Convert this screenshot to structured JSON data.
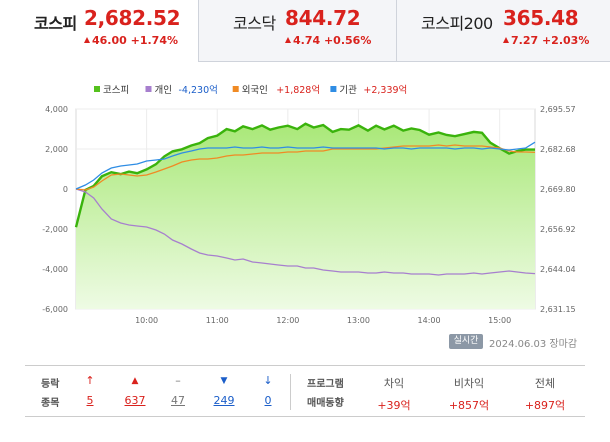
{
  "tabs": [
    {
      "name": "코스피",
      "value": "2,682.52",
      "change": "46.00 +1.74%",
      "active": true
    },
    {
      "name": "코스닥",
      "value": "844.72",
      "change": "4.74 +0.56%",
      "active": false
    },
    {
      "name": "코스피200",
      "value": "365.48",
      "change": "7.27 +2.03%",
      "active": false
    }
  ],
  "legend": [
    {
      "label": "코스피",
      "color": "#55c11d"
    },
    {
      "label": "개인",
      "value": "-4,230억",
      "color": "#a77fce",
      "value_color": "#1b5ec9"
    },
    {
      "label": "외국인",
      "value": "+1,828억",
      "color": "#f08a24",
      "value_color": "#d9221d"
    },
    {
      "label": "기관",
      "value": "+2,339억",
      "color": "#2f8de4",
      "value_color": "#d9221d"
    }
  ],
  "chart_data": {
    "type": "line",
    "x_ticks": [
      "10:00",
      "11:00",
      "12:00",
      "13:00",
      "14:00",
      "15:00"
    ],
    "x_range": [
      "09:00",
      "15:30"
    ],
    "left_axis": {
      "ticks": [
        "4,000",
        "2,000",
        "0",
        "-2,000",
        "-4,000",
        "-6,000"
      ],
      "range": [
        -6000,
        4000
      ],
      "unit": "억"
    },
    "right_axis": {
      "ticks": [
        "2,695.57",
        "2,682.68",
        "2,669.80",
        "2,656.92",
        "2,644.04",
        "2,631.15"
      ],
      "range": [
        2631.15,
        2695.57
      ]
    },
    "baseline_dotted": 2636.52,
    "series": [
      {
        "name": "코스피",
        "axis": "right",
        "type": "area",
        "x": [
          "09:00",
          "09:08",
          "09:15",
          "09:22",
          "09:30",
          "09:38",
          "09:45",
          "09:52",
          "10:00",
          "10:08",
          "10:15",
          "10:22",
          "10:30",
          "10:38",
          "10:45",
          "10:52",
          "11:00",
          "11:08",
          "11:15",
          "11:22",
          "11:30",
          "11:38",
          "11:45",
          "11:52",
          "12:00",
          "12:08",
          "12:15",
          "12:22",
          "12:30",
          "12:38",
          "12:45",
          "12:52",
          "13:00",
          "13:08",
          "13:15",
          "13:22",
          "13:30",
          "13:38",
          "13:45",
          "13:52",
          "14:00",
          "14:08",
          "14:15",
          "14:22",
          "14:30",
          "14:38",
          "14:45",
          "14:52",
          "15:00",
          "15:08",
          "15:15",
          "15:22",
          "15:30"
        ],
        "values": [
          2657.5,
          2669.5,
          2670.8,
          2673.9,
          2675.2,
          2674.6,
          2675.4,
          2674.9,
          2676.1,
          2677.8,
          2680.3,
          2681.9,
          2682.6,
          2683.8,
          2684.6,
          2686.2,
          2687.0,
          2689.1,
          2688.4,
          2690.0,
          2689.1,
          2690.3,
          2688.9,
          2689.6,
          2690.2,
          2689.1,
          2690.8,
          2689.6,
          2690.4,
          2688.2,
          2689.1,
          2688.9,
          2690.3,
          2688.6,
          2690.2,
          2689.0,
          2690.2,
          2688.6,
          2689.3,
          2688.8,
          2687.3,
          2688.0,
          2687.2,
          2686.8,
          2687.5,
          2688.2,
          2687.9,
          2684.7,
          2682.9,
          2681.2,
          2682.0,
          2682.5,
          2682.5
        ]
      },
      {
        "name": "개인",
        "axis": "left",
        "x": [
          "09:00",
          "09:08",
          "09:15",
          "09:22",
          "09:30",
          "09:38",
          "09:45",
          "09:52",
          "10:00",
          "10:08",
          "10:15",
          "10:22",
          "10:30",
          "10:38",
          "10:45",
          "10:52",
          "11:00",
          "11:08",
          "11:15",
          "11:22",
          "11:30",
          "11:38",
          "11:45",
          "11:52",
          "12:00",
          "12:08",
          "12:15",
          "12:22",
          "12:30",
          "12:38",
          "12:45",
          "12:52",
          "13:00",
          "13:08",
          "13:15",
          "13:22",
          "13:30",
          "13:38",
          "13:45",
          "13:52",
          "14:00",
          "14:08",
          "14:15",
          "14:22",
          "14:30",
          "14:38",
          "14:45",
          "14:52",
          "15:00",
          "15:08",
          "15:15",
          "15:22",
          "15:30"
        ],
        "values": [
          0,
          -150,
          -450,
          -1000,
          -1500,
          -1700,
          -1800,
          -1850,
          -1900,
          -2050,
          -2250,
          -2550,
          -2750,
          -3000,
          -3200,
          -3300,
          -3350,
          -3450,
          -3550,
          -3500,
          -3650,
          -3700,
          -3750,
          -3800,
          -3850,
          -3850,
          -3950,
          -3950,
          -4050,
          -4100,
          -4150,
          -4150,
          -4150,
          -4200,
          -4200,
          -4150,
          -4200,
          -4200,
          -4250,
          -4250,
          -4250,
          -4300,
          -4250,
          -4250,
          -4250,
          -4200,
          -4250,
          -4200,
          -4150,
          -4100,
          -4150,
          -4200,
          -4230
        ]
      },
      {
        "name": "외국인",
        "axis": "left",
        "x": [
          "09:00",
          "09:08",
          "09:15",
          "09:22",
          "09:30",
          "09:38",
          "09:45",
          "09:52",
          "10:00",
          "10:08",
          "10:15",
          "10:22",
          "10:30",
          "10:38",
          "10:45",
          "10:52",
          "11:00",
          "11:08",
          "11:15",
          "11:22",
          "11:30",
          "11:38",
          "11:45",
          "11:52",
          "12:00",
          "12:08",
          "12:15",
          "12:22",
          "12:30",
          "12:38",
          "12:45",
          "12:52",
          "13:00",
          "13:08",
          "13:15",
          "13:22",
          "13:30",
          "13:38",
          "13:45",
          "13:52",
          "14:00",
          "14:08",
          "14:15",
          "14:22",
          "14:30",
          "14:38",
          "14:45",
          "14:52",
          "15:00",
          "15:08",
          "15:15",
          "15:22",
          "15:30"
        ],
        "values": [
          0,
          -50,
          100,
          400,
          700,
          750,
          700,
          650,
          700,
          850,
          1000,
          1150,
          1350,
          1450,
          1500,
          1500,
          1550,
          1650,
          1700,
          1700,
          1750,
          1800,
          1800,
          1800,
          1850,
          1850,
          1900,
          1900,
          1900,
          2000,
          2000,
          2000,
          2000,
          2000,
          2000,
          2050,
          2100,
          2150,
          2150,
          2150,
          2150,
          2200,
          2150,
          2200,
          2150,
          2150,
          2150,
          2100,
          2050,
          1900,
          1850,
          1850,
          1828
        ]
      },
      {
        "name": "기관",
        "axis": "left",
        "x": [
          "09:00",
          "09:08",
          "09:15",
          "09:22",
          "09:30",
          "09:38",
          "09:45",
          "09:52",
          "10:00",
          "10:08",
          "10:15",
          "10:22",
          "10:30",
          "10:38",
          "10:45",
          "10:52",
          "11:00",
          "11:08",
          "11:15",
          "11:22",
          "11:30",
          "11:38",
          "11:45",
          "11:52",
          "12:00",
          "12:08",
          "12:15",
          "12:22",
          "12:30",
          "12:38",
          "12:45",
          "12:52",
          "13:00",
          "13:08",
          "13:15",
          "13:22",
          "13:30",
          "13:38",
          "13:45",
          "13:52",
          "14:00",
          "14:08",
          "14:15",
          "14:22",
          "14:30",
          "14:38",
          "14:45",
          "14:52",
          "15:00",
          "15:08",
          "15:15",
          "15:22",
          "15:30"
        ],
        "values": [
          0,
          200,
          450,
          800,
          1050,
          1150,
          1200,
          1250,
          1400,
          1450,
          1500,
          1650,
          1800,
          1900,
          2000,
          2050,
          2050,
          2050,
          2100,
          2050,
          2050,
          2100,
          2050,
          2050,
          2100,
          2050,
          2050,
          2050,
          2100,
          2050,
          2050,
          2050,
          2050,
          2050,
          2050,
          2000,
          2050,
          2050,
          2000,
          2050,
          2050,
          2050,
          2050,
          2000,
          2050,
          2050,
          2000,
          2050,
          2000,
          1950,
          2000,
          2050,
          2339
        ]
      }
    ]
  },
  "status": {
    "live": "실시간",
    "date": "2024.06.03 장마감"
  },
  "rise_fall": {
    "label_top": "등락",
    "label_bottom": "종목",
    "items": [
      {
        "icon": "↑",
        "value": "5",
        "kind": "upper-limit"
      },
      {
        "icon": "▲",
        "value": "637",
        "kind": "rise"
      },
      {
        "icon": "–",
        "value": "47",
        "kind": "flat"
      },
      {
        "icon": "▼",
        "value": "249",
        "kind": "fall"
      },
      {
        "icon": "↓",
        "value": "0",
        "kind": "lower-limit"
      }
    ]
  },
  "program": {
    "label_top": "프로그램",
    "label_bottom": "매매동향",
    "items": [
      {
        "head": "차익",
        "value": "+39억"
      },
      {
        "head": "비차익",
        "value": "+857억"
      },
      {
        "head": "전체",
        "value": "+897억"
      }
    ]
  }
}
